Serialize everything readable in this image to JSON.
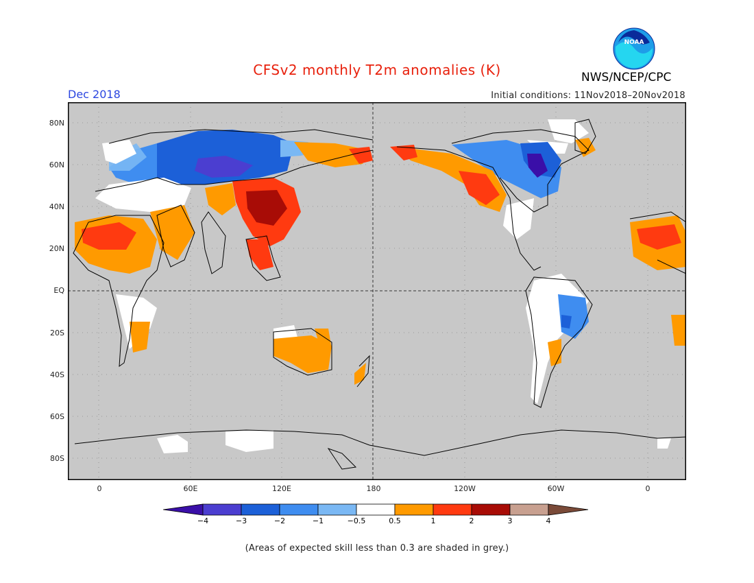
{
  "header": {
    "title": "CFSv2 monthly T2m anomalies (K)",
    "period": "Dec 2018",
    "initial_conditions": "Initial conditions: 11Nov2018–20Nov2018",
    "agency": "NWS/NCEP/CPC",
    "logo_text": "NOAA"
  },
  "map": {
    "lat_labels": [
      "80N",
      "60N",
      "40N",
      "20N",
      "EQ",
      "20S",
      "40S",
      "60S",
      "80S"
    ],
    "lon_labels": [
      "0",
      "60E",
      "120E",
      "180",
      "120W",
      "60W",
      "0"
    ],
    "colors": {
      "ocean": "#c8c8c8",
      "land_low_skill": "#c8c8c8",
      "coast": "#000000"
    }
  },
  "legend": {
    "tick_labels": [
      "−4",
      "−3",
      "−2",
      "−1",
      "−0.5",
      "0.5",
      "1",
      "2",
      "3",
      "4"
    ],
    "colors": [
      "#3a0fa8",
      "#4b3ed0",
      "#1c60d8",
      "#3f8df0",
      "#7ab8f4",
      "#ffffff",
      "#ff9a00",
      "#ff3a10",
      "#a80c06",
      "#c8a090",
      "#7a4a38"
    ]
  },
  "footnote": "(Areas of expected skill less than 0.3 are shaded in grey.)"
}
